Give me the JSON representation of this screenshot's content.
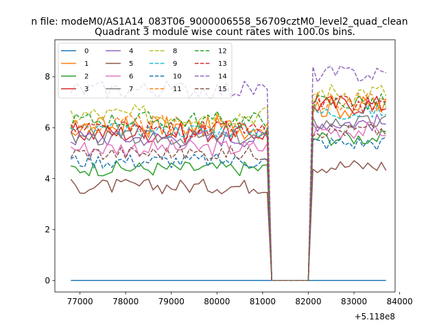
{
  "chart_data": {
    "type": "line",
    "suptitle": "n file: modeM0/AS1A14_083T06_9000006558_56709cztM0_level2_quad_clean",
    "title": "Quadrant 3 module wise count rates with 100.0s bins.",
    "xlabel": "",
    "ylabel": "",
    "x_offset_label": "+5.118e8",
    "xlim": [
      76450,
      83900
    ],
    "ylim": [
      -0.45,
      9.45
    ],
    "xticks": [
      77000,
      78000,
      79000,
      80000,
      81000,
      82000,
      83000,
      84000
    ],
    "xtick_labels": [
      "77000",
      "78000",
      "79000",
      "80000",
      "81000",
      "82000",
      "83000",
      "84000"
    ],
    "yticks": [
      0,
      2,
      4,
      6,
      8
    ],
    "ytick_labels": [
      "0",
      "2",
      "4",
      "6",
      "8"
    ],
    "legend_position": "upper-left",
    "legend_columns": 4,
    "x_start": 76800,
    "x_step": 100,
    "n_points": 70,
    "gap_start": 81200,
    "gap_end": 82000,
    "series": [
      {
        "name": "0",
        "color": "#1f77b4",
        "dash": "solid",
        "pre_level": 0.0,
        "post_level": 0.0,
        "noise": 0.0
      },
      {
        "name": "1",
        "color": "#ff7f0e",
        "dash": "solid",
        "pre_level": 6.0,
        "post_level": 6.8,
        "noise": 0.45
      },
      {
        "name": "2",
        "color": "#2ca02c",
        "dash": "solid",
        "pre_level": 4.4,
        "post_level": 5.6,
        "noise": 0.3
      },
      {
        "name": "3",
        "color": "#d62728",
        "dash": "solid",
        "pre_level": 5.8,
        "post_level": 6.9,
        "noise": 0.4
      },
      {
        "name": "4",
        "color": "#9467bd",
        "dash": "solid",
        "pre_level": 5.6,
        "post_level": 6.2,
        "noise": 0.35
      },
      {
        "name": "5",
        "color": "#8c564b",
        "dash": "solid",
        "pre_level": 3.7,
        "post_level": 4.5,
        "noise": 0.3
      },
      {
        "name": "6",
        "color": "#e377c2",
        "dash": "solid",
        "pre_level": 5.2,
        "post_level": 5.9,
        "noise": 0.35
      },
      {
        "name": "7",
        "color": "#7f7f7f",
        "dash": "solid",
        "pre_level": 5.6,
        "post_level": 6.2,
        "noise": 0.3
      },
      {
        "name": "8",
        "color": "#bcbd22",
        "dash": "dashed",
        "pre_level": 6.5,
        "post_level": 7.4,
        "noise": 0.4
      },
      {
        "name": "9",
        "color": "#17becf",
        "dash": "dashed",
        "pre_level": 5.9,
        "post_level": 6.6,
        "noise": 0.3
      },
      {
        "name": "10",
        "color": "#1f77b4",
        "dash": "dashed",
        "pre_level": 4.7,
        "post_level": 5.4,
        "noise": 0.3
      },
      {
        "name": "11",
        "color": "#ff7f0e",
        "dash": "dashed",
        "pre_level": 6.1,
        "post_level": 7.0,
        "noise": 0.4
      },
      {
        "name": "12",
        "color": "#2ca02c",
        "dash": "dashed",
        "pre_level": 6.3,
        "post_level": 7.0,
        "noise": 0.35
      },
      {
        "name": "13",
        "color": "#d62728",
        "dash": "dashed",
        "pre_level": 5.9,
        "post_level": 6.9,
        "noise": 0.35
      },
      {
        "name": "14",
        "color": "#9467bd",
        "dash": "dashed",
        "pre_level": 7.5,
        "post_level": 8.1,
        "noise": 0.35
      },
      {
        "name": "15",
        "color": "#8c564b",
        "dash": "dashed",
        "pre_level": 5.0,
        "post_level": 5.9,
        "noise": 0.3
      }
    ]
  }
}
